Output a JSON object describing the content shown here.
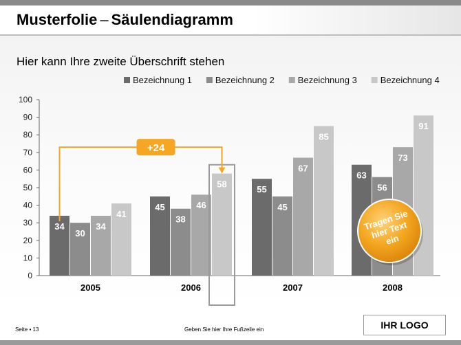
{
  "slide": {
    "title_main": "Musterfolie",
    "title_sep": "–",
    "title_sub": "Säulendiagramm",
    "subtitle": "Hier kann Ihre zweite Überschrift stehen",
    "footer_left": "Seite ▪ 13",
    "footer_center": "Geben Sie hier Ihre Fußzeile ein",
    "logo": "IHR LOGO"
  },
  "chart_data": {
    "type": "bar",
    "categories": [
      "2005",
      "2006",
      "2007",
      "2008"
    ],
    "series": [
      {
        "name": "Bezeichnung 1",
        "color": "#6b6b6b",
        "values": [
          34,
          45,
          55,
          63
        ]
      },
      {
        "name": "Bezeichnung 2",
        "color": "#8c8c8c",
        "values": [
          30,
          38,
          45,
          56
        ]
      },
      {
        "name": "Bezeichnung 3",
        "color": "#a8a8a8",
        "values": [
          34,
          46,
          67,
          73
        ]
      },
      {
        "name": "Bezeichnung 4",
        "color": "#c8c8c8",
        "values": [
          41,
          58,
          85,
          91
        ]
      }
    ],
    "ylim": [
      0,
      100
    ],
    "yticks": [
      0,
      10,
      20,
      30,
      40,
      50,
      60,
      70,
      80,
      90,
      100
    ],
    "legend_position": "top-right",
    "grid": false,
    "annotations": {
      "difference_label": "+24",
      "difference_color": "#f5a623",
      "callout_text": "Tragen Sie hier Text ein",
      "callout_color": "#f0a21b"
    }
  }
}
